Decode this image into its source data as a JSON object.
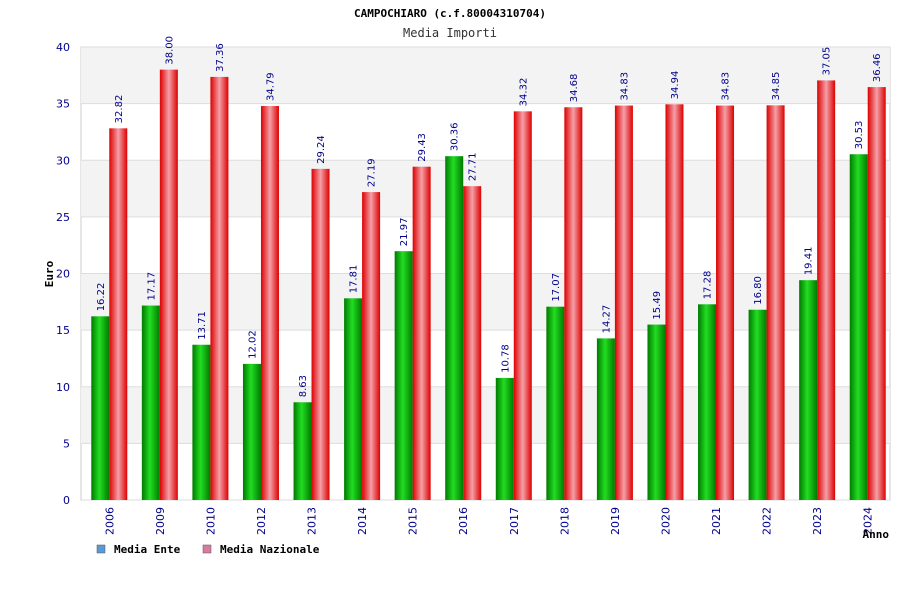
{
  "chart_data": {
    "type": "bar",
    "title": "CAMPOCHIARO (c.f.80004310704)",
    "subtitle": "Media Importi",
    "xlabel": "Anno",
    "ylabel": "Euro",
    "ylim": [
      0,
      40
    ],
    "yticks": [
      0,
      5,
      10,
      15,
      20,
      25,
      30,
      35,
      40
    ],
    "grid": true,
    "legend_position": "bottom-left",
    "categories": [
      "2006",
      "2009",
      "2010",
      "2012",
      "2013",
      "2014",
      "2015",
      "2016",
      "2017",
      "2018",
      "2019",
      "2020",
      "2021",
      "2022",
      "2023",
      "2024"
    ],
    "series": [
      {
        "name": "Media Ente",
        "color": "#00aa00",
        "legend_color": "#5b9bd5",
        "values": [
          16.22,
          17.17,
          13.71,
          12.02,
          8.63,
          17.81,
          21.97,
          30.36,
          10.78,
          17.07,
          14.27,
          15.49,
          17.28,
          16.8,
          19.41,
          30.53
        ],
        "labels": [
          "16.22",
          "17.17",
          "13.71",
          "12.02",
          "8.63",
          "17.81",
          "21.97",
          "30.36",
          "10.78",
          "17.07",
          "14.27",
          "15.49",
          "17.28",
          "16.80",
          "19.41",
          "30.53"
        ]
      },
      {
        "name": "Media Nazionale",
        "color": "#ee1111",
        "legend_color": "#d97aa0",
        "values": [
          32.82,
          38.0,
          37.36,
          34.79,
          29.24,
          27.19,
          29.43,
          27.71,
          34.32,
          34.68,
          34.83,
          34.94,
          34.83,
          34.85,
          37.05,
          36.46
        ],
        "labels": [
          "32.82",
          "38.00",
          "37.36",
          "34.79",
          "29.24",
          "27.19",
          "29.43",
          "27.71",
          "34.32",
          "34.68",
          "34.83",
          "34.94",
          "34.83",
          "34.85",
          "37.05",
          "36.46"
        ]
      }
    ]
  }
}
